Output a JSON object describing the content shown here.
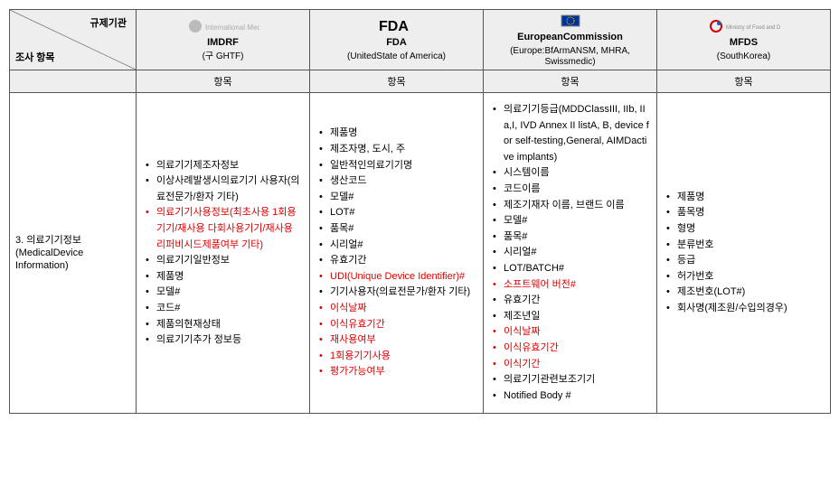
{
  "header": {
    "diag_top": "규제기관",
    "diag_bottom": "조사 항목",
    "orgs": [
      {
        "title": "IMDRF",
        "sub": "(구 GHTF)",
        "logo_text": "IMDRF"
      },
      {
        "title": "FDA",
        "sub": "(UnitedState of America)",
        "logo_text": "FDA"
      },
      {
        "title": "EuropeanCommission",
        "sub": "(Europe:BfArmANSM, MHRA, Swissmedic)",
        "logo_text": "EU"
      },
      {
        "title": "MFDS",
        "sub": "(SouthKorea)",
        "logo_text": "MFDS"
      }
    ],
    "sub_header": "항목"
  },
  "row": {
    "label_line1": "3. 의료기기정보",
    "label_line2": "(MedicalDevice Information)"
  },
  "columns": {
    "imdrf": [
      {
        "t": "의료기기제조자정보",
        "c": "black"
      },
      {
        "t": "이상사례발생시의료기기 사용자(의료전문가/환자 기타)",
        "c": "black"
      },
      {
        "t": "의료기기사용정보(최초사용 1회용기기/재사용 다회사용기기/재사용 리퍼비시드제품여부 기타)",
        "c": "red"
      },
      {
        "t": "의료기기일반정보",
        "c": "black"
      },
      {
        "t": "제품명",
        "c": "black"
      },
      {
        "t": "모델#",
        "c": "black"
      },
      {
        "t": "코드#",
        "c": "black"
      },
      {
        "t": "제품의현재상태",
        "c": "black"
      },
      {
        "t": "의료기기추가 정보등",
        "c": "black"
      }
    ],
    "fda": [
      {
        "t": "제품명",
        "c": "black"
      },
      {
        "t": "제조자명, 도시, 주",
        "c": "black"
      },
      {
        "t": "일반적인의료기기명",
        "c": "black"
      },
      {
        "t": "생산코드",
        "c": "black"
      },
      {
        "t": "모델#",
        "c": "black"
      },
      {
        "t": "LOT#",
        "c": "black"
      },
      {
        "t": "품목#",
        "c": "black"
      },
      {
        "t": "시리얼#",
        "c": "black"
      },
      {
        "t": "유효기간",
        "c": "black"
      },
      {
        "t": "UDI(Unique Device Identifier)#",
        "c": "red"
      },
      {
        "t": "기기사용자(의료전문가/환자 기타)",
        "c": "black"
      },
      {
        "t": "이식날짜",
        "c": "red"
      },
      {
        "t": "이식유효기간",
        "c": "red"
      },
      {
        "t": "재사용여부",
        "c": "red"
      },
      {
        "t": "1회용기기사용",
        "c": "red"
      },
      {
        "t": "평가가능여부",
        "c": "red"
      }
    ],
    "eu": [
      {
        "t": "의료기기등급(MDDClassIII, IIb, IIa,I, IVD Annex II listA, B, device for self-testing,General, AIMDactive implants)",
        "c": "black"
      },
      {
        "t": "시스템이름",
        "c": "black"
      },
      {
        "t": "코드이름",
        "c": "black"
      },
      {
        "t": "제조기재자 이름, 브랜드 이름",
        "c": "black"
      },
      {
        "t": "모델#",
        "c": "black"
      },
      {
        "t": "품목#",
        "c": "black"
      },
      {
        "t": "시리얼#",
        "c": "black"
      },
      {
        "t": "LOT/BATCH#",
        "c": "black"
      },
      {
        "t": "소프트웨어 버전#",
        "c": "red"
      },
      {
        "t": "유효기간",
        "c": "black"
      },
      {
        "t": "제조년일",
        "c": "black"
      },
      {
        "t": "이식날짜",
        "c": "red"
      },
      {
        "t": "이식유효기간",
        "c": "red"
      },
      {
        "t": "이식기간",
        "c": "red"
      },
      {
        "t": "의료기기관련보조기기",
        "c": "black"
      },
      {
        "t": "Notified Body #",
        "c": "black"
      }
    ],
    "mfds": [
      {
        "t": "제품명",
        "c": "black"
      },
      {
        "t": "품목명",
        "c": "black"
      },
      {
        "t": "형명",
        "c": "black"
      },
      {
        "t": "분류번호",
        "c": "black"
      },
      {
        "t": "등급",
        "c": "black"
      },
      {
        "t": "허가번호",
        "c": "black"
      },
      {
        "t": "제조번호(LOT#)",
        "c": "black"
      },
      {
        "t": "회사명(제조원/수입의경우)",
        "c": "black"
      }
    ]
  },
  "style": {
    "red_hex": "#d00",
    "black_hex": "#000",
    "bg_hdr": "#eee",
    "border": "#555"
  }
}
